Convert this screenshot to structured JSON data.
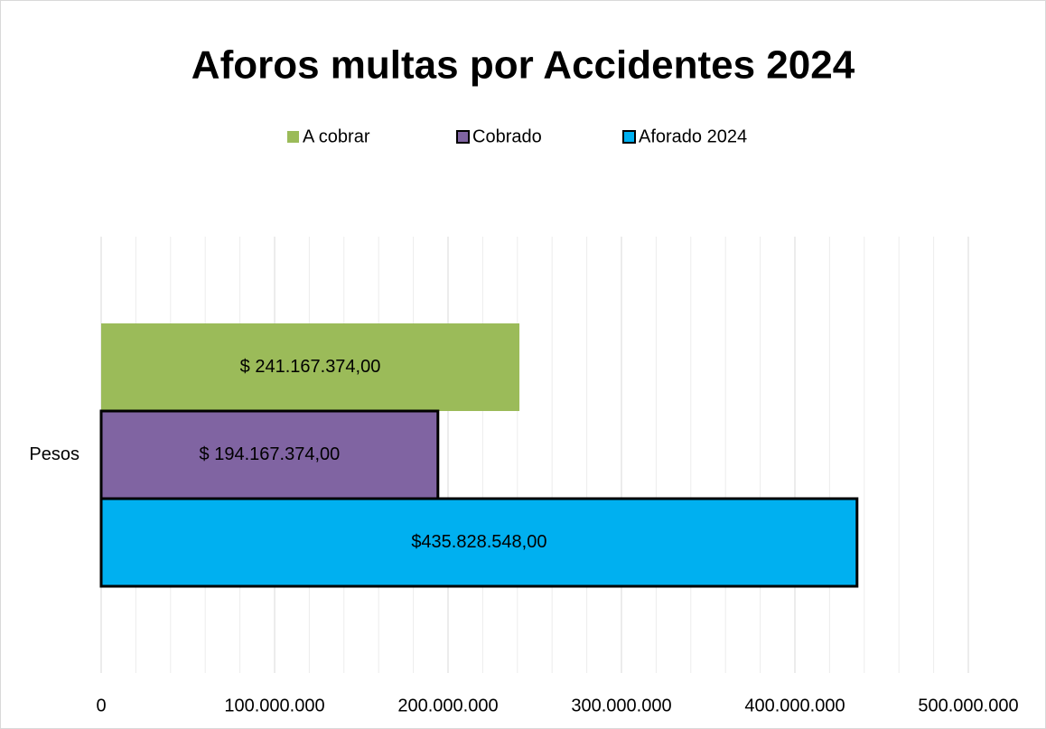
{
  "chart_data": {
    "type": "hbar",
    "title": "Aforos multas por Accidentes 2024",
    "categories": [
      "Pesos"
    ],
    "series": [
      {
        "name": "A cobrar",
        "color": "#9bbb59",
        "values": [
          241167374
        ],
        "value_labels": [
          "$ 241.167.374,00"
        ]
      },
      {
        "name": "Cobrado",
        "color": "#8064a2",
        "edgecolor": "#000000",
        "values": [
          194167374
        ],
        "value_labels": [
          "$ 194.167.374,00"
        ]
      },
      {
        "name": "Aforado 2024",
        "color": "#00b0f0",
        "edgecolor": "#000000",
        "values": [
          435828548
        ],
        "value_labels": [
          "$435.828.548,00"
        ]
      }
    ],
    "xlim": [
      0,
      500000000
    ],
    "xticks": [
      0,
      {
        "value": 100000000,
        "label": "100.000.000"
      },
      {
        "value": 200000000,
        "label": "200.000.000"
      },
      {
        "value": 300000000,
        "label": "300.000.000"
      },
      {
        "value": 400000000,
        "label": "400.000.000"
      },
      {
        "value": 500000000,
        "label": "500.000.000"
      }
    ],
    "xminorticks": [
      20000000,
      40000000,
      60000000,
      80000000,
      120000000,
      140000000,
      160000000,
      180000000,
      220000000,
      240000000,
      260000000,
      280000000,
      320000000,
      340000000,
      360000000,
      380000000,
      420000000,
      440000000,
      460000000,
      480000000
    ],
    "grid": true,
    "legend": "top"
  }
}
